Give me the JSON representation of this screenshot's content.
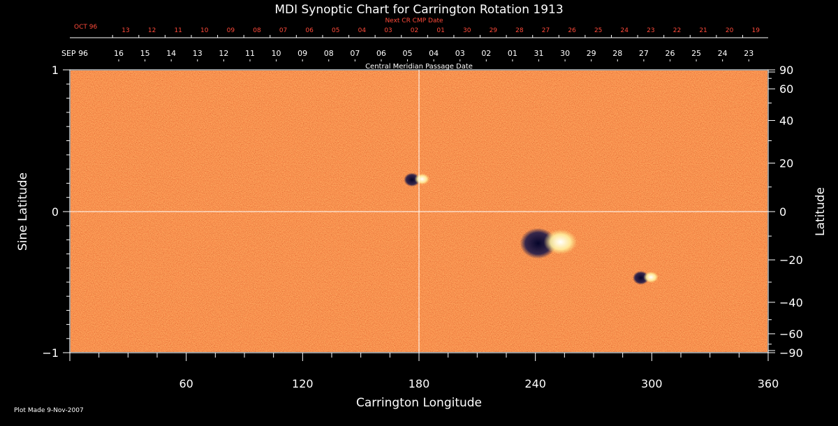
{
  "chart_data": {
    "type": "heatmap",
    "title": "MDI Synoptic Chart for Carrington Rotation 1913",
    "xlabel": "Carrington Longitude",
    "ylabel_left": "Sine Latitude",
    "ylabel_right": "Latitude",
    "xlim": [
      0,
      360
    ],
    "ylim_sine": [
      -1,
      1
    ],
    "x_ticks": [
      60,
      120,
      180,
      240,
      300,
      360
    ],
    "left_ticks": [
      {
        "value": 1,
        "label": "1"
      },
      {
        "value": 0,
        "label": "0"
      },
      {
        "value": -1,
        "label": "−1"
      }
    ],
    "right_ticks": [
      {
        "lat": 90,
        "label": "90"
      },
      {
        "lat": 60,
        "label": "60"
      },
      {
        "lat": 40,
        "label": "40"
      },
      {
        "lat": 20,
        "label": "20"
      },
      {
        "lat": 0,
        "label": "0"
      },
      {
        "lat": -20,
        "label": "−20"
      },
      {
        "lat": -40,
        "label": "−40"
      },
      {
        "lat": -60,
        "label": "−60"
      },
      {
        "lat": -90,
        "label": "−90"
      }
    ],
    "cmp_axis_label": "Central Meridian Passage Date",
    "cmp_month": "SEP 96",
    "cmp_dates": [
      "16",
      "15",
      "14",
      "13",
      "12",
      "11",
      "10",
      "09",
      "08",
      "07",
      "06",
      "05",
      "04",
      "03",
      "02",
      "01",
      "31",
      "30",
      "29",
      "28",
      "27",
      "26",
      "25",
      "24",
      "23"
    ],
    "next_cmp_label": "Next CR CMP Date",
    "next_cmp_month": "OCT 96",
    "next_cmp_dates": [
      "13",
      "12",
      "11",
      "10",
      "09",
      "08",
      "07",
      "06",
      "05",
      "04",
      "03",
      "02",
      "01",
      "30",
      "29",
      "28",
      "27",
      "26",
      "25",
      "24",
      "23",
      "22",
      "21",
      "20",
      "19"
    ],
    "features": [
      {
        "name": "active-region",
        "lon": 245,
        "lat": -13,
        "polarity": "mixed"
      },
      {
        "name": "small-region-north",
        "lon": 178,
        "lat": 13,
        "polarity": "mixed"
      },
      {
        "name": "small-region-south",
        "lon": 296,
        "lat": -28,
        "polarity": "mixed"
      }
    ],
    "colors": {
      "background": "#000000",
      "map_base": "#e8471c",
      "positive": "#fff2b0",
      "negative": "#0a0a3a",
      "axis": "#ffffff",
      "next_cr": "#ff4a3a"
    }
  },
  "footer": {
    "plot_made": "Plot Made  9-Nov-2007"
  }
}
